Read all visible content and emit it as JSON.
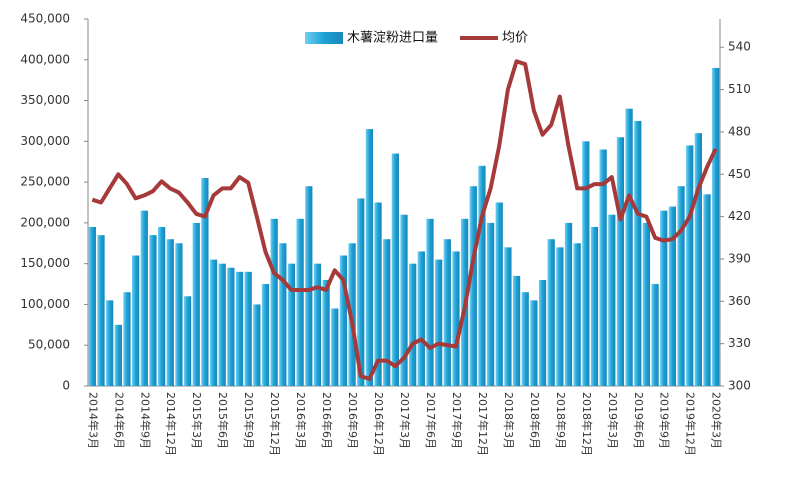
{
  "chart_data": {
    "type": "bar",
    "categories": [
      "2014年3月",
      null,
      null,
      "2014年6月",
      null,
      null,
      "2014年9月",
      null,
      null,
      "2014年12月",
      null,
      null,
      "2015年3月",
      null,
      null,
      "2015年6月",
      null,
      null,
      "2015年9月",
      null,
      null,
      "2015年12月",
      null,
      null,
      "2016年3月",
      null,
      null,
      "2016年6月",
      null,
      null,
      "2016年9月",
      null,
      null,
      "2016年12月",
      null,
      null,
      "2017年3月",
      null,
      null,
      "2017年6月",
      null,
      null,
      "2017年9月",
      null,
      null,
      "2017年12月",
      null,
      null,
      "2018年3月",
      null,
      null,
      "2018年6月",
      null,
      null,
      "2018年9月",
      null,
      null,
      "2018年12月",
      null,
      null,
      "2019年3月",
      null,
      null,
      "2019年6月",
      null,
      null,
      "2019年9月",
      null,
      null,
      "2019年12月",
      null,
      null,
      "2020年3月"
    ],
    "series": [
      {
        "name": "木薯淀粉进口量",
        "color": "#1ea0d5",
        "values": [
          195000,
          185000,
          105000,
          75000,
          115000,
          160000,
          215000,
          185000,
          195000,
          180000,
          175000,
          110000,
          200000,
          255000,
          155000,
          150000,
          145000,
          140000,
          140000,
          100000,
          125000,
          205000,
          175000,
          150000,
          205000,
          245000,
          150000,
          130000,
          95000,
          160000,
          175000,
          230000,
          315000,
          225000,
          180000,
          285000,
          210000,
          150000,
          165000,
          205000,
          155000,
          180000,
          165000,
          205000,
          245000,
          270000,
          200000,
          225000,
          170000,
          135000,
          115000,
          105000,
          130000,
          180000,
          170000,
          200000,
          175000,
          300000,
          195000,
          290000,
          210000,
          305000,
          340000,
          325000,
          200000,
          125000,
          215000,
          220000,
          245000,
          295000,
          310000,
          235000,
          390000
        ]
      },
      {
        "name": "均价",
        "type": "line",
        "axis": "y2",
        "color": "#a63a3a",
        "values": [
          432,
          430,
          440,
          450,
          443,
          433,
          435,
          438,
          445,
          440,
          437,
          430,
          422,
          420,
          435,
          440,
          440,
          448,
          444,
          420,
          395,
          380,
          375,
          368,
          368,
          368,
          370,
          368,
          382,
          375,
          345,
          307,
          305,
          318,
          318,
          314,
          320,
          330,
          333,
          327,
          330,
          329,
          328,
          355,
          390,
          420,
          440,
          470,
          510,
          530,
          528,
          495,
          478,
          485,
          505,
          470,
          440,
          440,
          443,
          443,
          448,
          418,
          435,
          422,
          420,
          405,
          403,
          404,
          410,
          420,
          440,
          455,
          468
        ]
      }
    ],
    "ylim": [
      0,
      450000
    ],
    "yticks": [
      {
        "value": 0,
        "label": "0"
      },
      {
        "value": 50000,
        "label": "50,000"
      },
      {
        "value": 100000,
        "label": "100,000"
      },
      {
        "value": 150000,
        "label": "150,000"
      },
      {
        "value": 200000,
        "label": "200,000"
      },
      {
        "value": 250000,
        "label": "250,000"
      },
      {
        "value": 300000,
        "label": "300,000"
      },
      {
        "value": 350000,
        "label": "350,000"
      },
      {
        "value": 400000,
        "label": "400,000"
      },
      {
        "value": 450000,
        "label": "450,000"
      }
    ],
    "y2lim": [
      300,
      560
    ],
    "y2ticks": [
      300,
      330,
      360,
      390,
      420,
      450,
      480,
      510,
      540
    ],
    "legend": "top"
  }
}
